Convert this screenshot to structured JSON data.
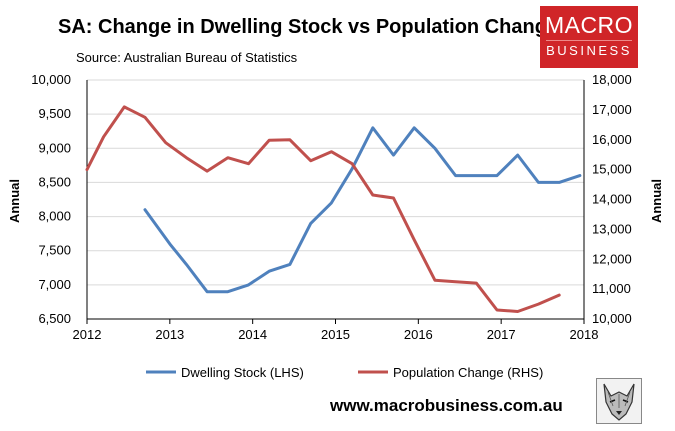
{
  "header": {
    "title": "SA: Change in Dwelling Stock vs Population Change",
    "subtitle": "Source: Australian Bureau of Statistics"
  },
  "logo": {
    "line1": "MACRO",
    "line2": "BUSINESS",
    "color": "#d02528"
  },
  "footer": {
    "website": "www.macrobusiness.com.au"
  },
  "chart_data": {
    "type": "line",
    "title": "SA: Change in Dwelling Stock vs Population Change",
    "xlim": [
      2012,
      2018
    ],
    "x_ticks": [
      2012,
      2013,
      2014,
      2015,
      2016,
      2017,
      2018
    ],
    "y_left": {
      "label": "Annual",
      "lim": [
        6500,
        10000
      ],
      "ticks": [
        6500,
        7000,
        7500,
        8000,
        8500,
        9000,
        9500,
        10000
      ],
      "tick_labels": [
        "6,500",
        "7,000",
        "7,500",
        "8,000",
        "8,500",
        "9,000",
        "9,500",
        "10,000"
      ]
    },
    "y_right": {
      "label": "Annual",
      "lim": [
        10000,
        18000
      ],
      "ticks": [
        10000,
        11000,
        12000,
        13000,
        14000,
        15000,
        16000,
        17000,
        18000
      ],
      "tick_labels": [
        "10,000",
        "11,000",
        "12,000",
        "13,000",
        "14,000",
        "15,000",
        "16,000",
        "17,000",
        "18,000"
      ]
    },
    "series": [
      {
        "name": "Dwelling Stock (LHS)",
        "axis": "left",
        "color": "#4f81bd",
        "x": [
          2012.7,
          2013.0,
          2013.2,
          2013.45,
          2013.7,
          2013.95,
          2014.2,
          2014.45,
          2014.7,
          2014.95,
          2015.2,
          2015.45,
          2015.7,
          2015.95,
          2016.2,
          2016.45,
          2016.7,
          2016.95,
          2017.2,
          2017.45,
          2017.7,
          2017.95
        ],
        "values": [
          8100,
          7600,
          7300,
          6900,
          6900,
          7000,
          7200,
          7300,
          7900,
          8200,
          8700,
          9300,
          8900,
          9300,
          9000,
          8600,
          8600,
          8600,
          8900,
          8500,
          8500,
          8600
        ]
      },
      {
        "name": "Population Change (RHS)",
        "axis": "right",
        "color": "#c0504d",
        "x": [
          2012.0,
          2012.2,
          2012.45,
          2012.7,
          2012.95,
          2013.2,
          2013.45,
          2013.7,
          2013.95,
          2014.2,
          2014.45,
          2014.7,
          2014.95,
          2015.2,
          2015.45,
          2015.7,
          2015.95,
          2016.2,
          2016.45,
          2016.7,
          2016.95,
          2017.2,
          2017.45,
          2017.7
        ],
        "values": [
          15000,
          16100,
          17100,
          16750,
          15900,
          15400,
          14950,
          15400,
          15200,
          15980,
          16000,
          15300,
          15600,
          15200,
          14150,
          14050,
          12650,
          11300,
          11250,
          11200,
          10300,
          10250,
          10500,
          10800
        ]
      }
    ],
    "legend": {
      "position": "bottom",
      "labels": [
        "Dwelling Stock (LHS)",
        "Population Change (RHS)"
      ]
    }
  }
}
